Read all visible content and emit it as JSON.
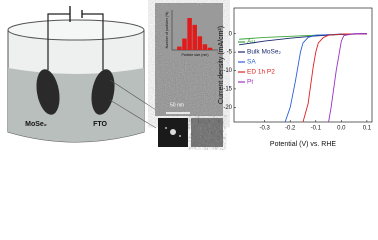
{
  "diagram": {
    "electrodes": [
      "MoSe₂",
      "FTO"
    ],
    "scale_bar": "50 nm"
  },
  "chart_data": [
    {
      "type": "histogram",
      "xlabel": "Particle size (nm)",
      "ylabel": "Number of particles (%)",
      "bins": [
        1,
        1.5,
        2,
        2.5,
        3,
        3.5,
        4,
        4.5
      ],
      "values": [
        3,
        10,
        28,
        22,
        12,
        5,
        2
      ],
      "color": "#e01b1b",
      "xlim": [
        0.5,
        5
      ],
      "ylim": [
        0,
        35
      ]
    },
    {
      "type": "line",
      "xlabel": "Potential (V) vs. RHE",
      "ylabel": "Current density (mA/cm²)",
      "xlim": [
        -0.42,
        0.12
      ],
      "ylim": [
        -24,
        7
      ],
      "xticks": [
        -0.3,
        -0.2,
        -0.1,
        {
          "value": 0,
          "label": "0.0"
        },
        0.1
      ],
      "yticks": [
        -20,
        -15,
        -10,
        -5,
        0
      ],
      "legend": "upper left",
      "series": [
        {
          "name": "Au",
          "color": "#3aa53a",
          "x": [
            -0.4,
            -0.3,
            -0.2,
            -0.1,
            0,
            0.1
          ],
          "values": [
            -1.5,
            -1,
            -0.7,
            -0.4,
            -0.2,
            0
          ]
        },
        {
          "name": "Bulk MoSe₂",
          "color": "#1c2a6e",
          "x": [
            -0.4,
            -0.3,
            -0.2,
            -0.1,
            0,
            0.1
          ],
          "values": [
            -3,
            -2,
            -1.2,
            -0.6,
            -0.2,
            0
          ]
        },
        {
          "name": "SA",
          "color": "#2b5fd9",
          "x": [
            -0.22,
            -0.2,
            -0.18,
            -0.17,
            -0.16,
            -0.15,
            -0.13,
            -0.1,
            0,
            0.1
          ],
          "values": [
            -24,
            -20,
            -13,
            -9,
            -5,
            -2.5,
            -1,
            -0.4,
            -0.1,
            0
          ]
        },
        {
          "name": "ED 1h P2",
          "color": "#e02020",
          "x": [
            -0.15,
            -0.13,
            -0.12,
            -0.11,
            -0.1,
            -0.09,
            -0.07,
            -0.05,
            0,
            0.1
          ],
          "values": [
            -24,
            -19,
            -14,
            -9,
            -5,
            -2.5,
            -1,
            -0.4,
            -0.1,
            0
          ]
        },
        {
          "name": "Pt",
          "color": "#9b30c8",
          "x": [
            -0.05,
            -0.04,
            -0.03,
            -0.02,
            -0.01,
            0,
            0.01,
            0.05,
            0.1
          ],
          "values": [
            -24,
            -20,
            -15,
            -10,
            -6,
            -2,
            -0.5,
            0,
            0
          ]
        }
      ]
    }
  ]
}
